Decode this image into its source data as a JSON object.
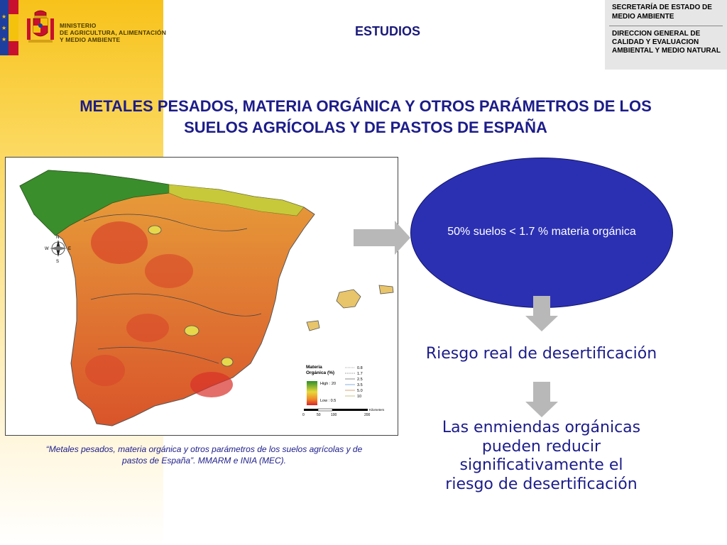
{
  "logo": {
    "ministry_lines": [
      "MINISTERIO",
      "DE AGRICULTURA, ALIMENTACIÓN",
      "Y MEDIO AMBIENTE"
    ],
    "crest_icon": "spain-coat-of-arms-icon",
    "flag_icon": "eu-spain-flag-icon"
  },
  "header": {
    "section_label": "ESTUDIOS",
    "secretaria": "SECRETARÍA DE ESTADO DE MEDIO AMBIENTE",
    "direccion": "DIRECCION GENERAL DE CALIDAD Y EVALUACION AMBIENTAL Y MEDIO NATURAL"
  },
  "title": {
    "line1": "METALES PESADOS, MATERIA ORGÁNICA Y OTROS PARÁMETROS DE LOS",
    "line2": "SUELOS AGRÍCOLAS Y DE PASTOS DE ESPAÑA"
  },
  "map": {
    "legend_title_line1": "Materia",
    "legend_title_line2": "Orgánica (%)",
    "legend_high": "High : 20",
    "legend_low": "Low : 0.5",
    "contour_values": [
      "0.8",
      "1.7",
      "2.5",
      "3.5",
      "5.0",
      "10"
    ],
    "scale_ticks": [
      "0",
      "50",
      "100",
      "200"
    ],
    "scale_unit": "Kilometers",
    "compass": {
      "n": "N",
      "s": "S",
      "e": "E",
      "w": "W"
    },
    "colors": {
      "high": "#2f8f2a",
      "mid": "#e8a13a",
      "low": "#d8442a"
    }
  },
  "caption": {
    "line1": "“Metales pesados, materia orgánica y otros parámetros de los suelos agrícolas y de",
    "line2": "pastos de España”. MMARM e INIA (MEC)."
  },
  "flow": {
    "ellipse_text": "50% suelos < 1.7 % materia orgánica",
    "riesgo": "Riesgo real de desertificación",
    "enmiendas_lines": [
      "Las enmiendas orgánicas",
      "pueden reducir",
      "significativamente el",
      "riesgo de desertificación"
    ],
    "accent_color": "#2b30b3"
  }
}
